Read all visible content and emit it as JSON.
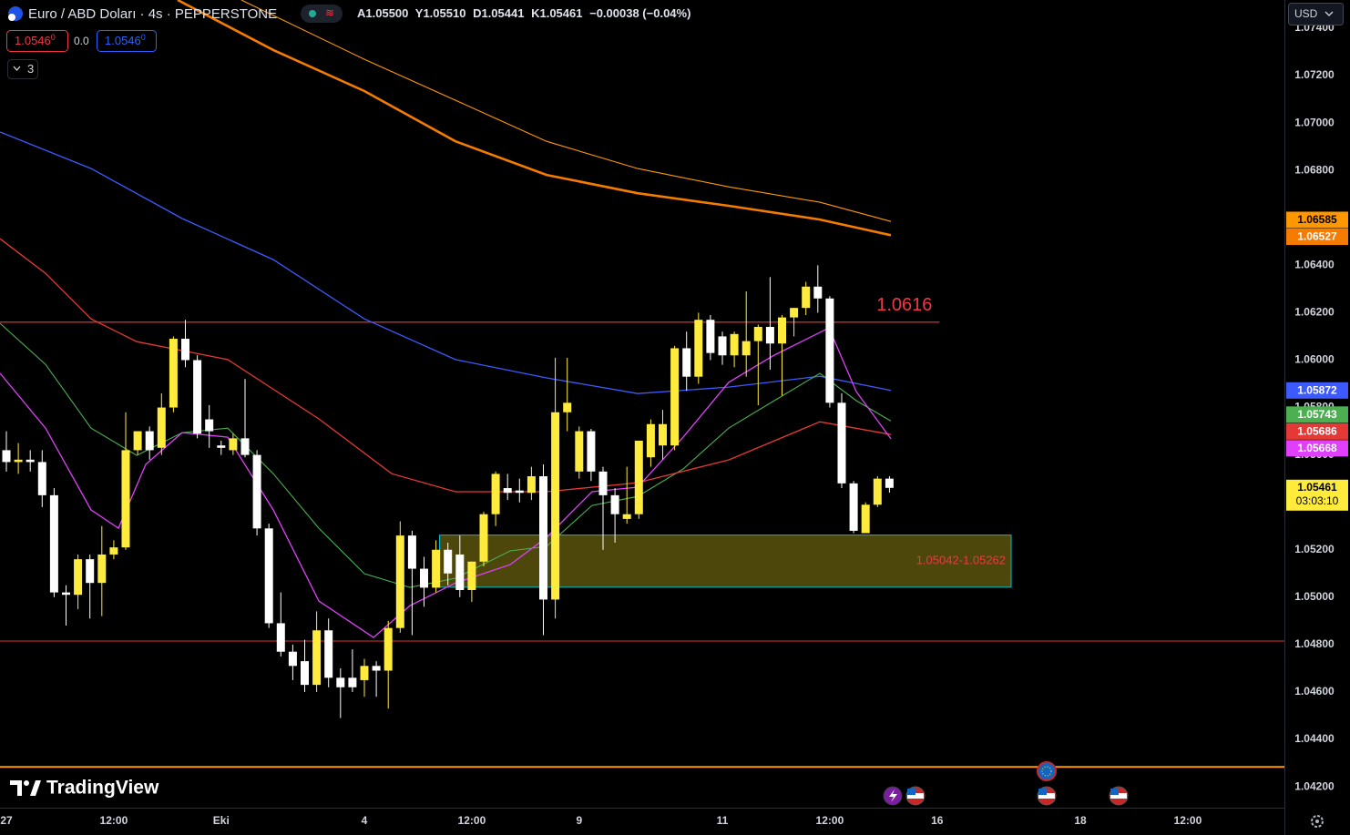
{
  "header": {
    "symbol": "Euro / ABD Doları · 4s · PEPPERSTONE",
    "ohlc": [
      "A1.05500",
      "Y1.05510",
      "D1.05441",
      "K1.05461",
      "−0.00038 (−0.04%)"
    ],
    "sell": "1.0546",
    "sell_sup": "0",
    "spread": "0.0",
    "buy": "1.0546",
    "buy_sup": "0",
    "indicators_count": "3",
    "currency": "USD",
    "brand": "TradingView"
  },
  "chart_data": {
    "type": "candlestick",
    "categories": [
      "27",
      null,
      null,
      null,
      null,
      null,
      null,
      null,
      null,
      "12:00",
      null,
      null,
      null,
      null,
      null,
      null,
      null,
      null,
      "Eki",
      null,
      null,
      null,
      null,
      null,
      null,
      null,
      null,
      null,
      null,
      null,
      "4",
      null,
      null,
      null,
      null,
      null,
      null,
      null,
      null,
      "12:00",
      null,
      null,
      null,
      null,
      null,
      null,
      null,
      null,
      "9",
      null,
      null,
      null,
      null,
      null,
      null,
      null,
      null,
      null,
      null,
      null,
      "11",
      null,
      null,
      null,
      null,
      null,
      null,
      null,
      null,
      "12:00",
      null,
      null,
      null,
      null,
      null,
      null,
      null,
      null,
      "16",
      null,
      null,
      null,
      null,
      null,
      null,
      null,
      null,
      null,
      null,
      null,
      "18",
      null,
      null,
      null,
      null,
      null,
      null,
      null,
      null,
      "12:00"
    ],
    "open": [
      1.0562,
      1.0557,
      1.0558,
      1.0557,
      1.0543,
      1.0502,
      1.0501,
      1.0516,
      1.0506,
      1.0518,
      1.0521,
      1.0562,
      1.057,
      1.0563,
      1.058,
      1.0609,
      1.06,
      1.0575,
      1.0564,
      1.0562,
      1.0567,
      1.056,
      1.0529,
      1.0489,
      1.0477,
      1.0473,
      1.0463,
      1.0486,
      1.0466,
      1.0466,
      1.0465,
      1.0471,
      1.0469,
      1.0487,
      1.0526,
      1.0512,
      1.0504,
      1.052,
      1.0518,
      1.0503,
      1.0515,
      1.0535,
      1.0546,
      1.0545,
      1.0544,
      1.0551,
      1.0499,
      1.0578,
      1.0553,
      1.057,
      1.0553,
      1.0543,
      1.0533,
      1.0535,
      1.0559,
      1.0564,
      1.0564,
      1.0605,
      1.0593,
      1.0617,
      1.061,
      1.0602,
      1.0602,
      1.0608,
      1.0614,
      1.0607,
      1.0618,
      1.0622,
      1.0631,
      1.0626,
      1.0582,
      1.0548,
      1.0527,
      1.0539,
      1.055,
      null,
      null,
      null,
      null,
      null,
      null,
      null,
      null,
      null,
      null,
      null,
      null,
      null,
      null,
      null,
      null,
      null,
      null,
      null,
      null,
      null,
      null,
      null,
      null,
      null
    ],
    "high": [
      1.057,
      1.0565,
      1.0562,
      1.0562,
      1.0546,
      1.0505,
      1.0518,
      1.0518,
      1.053,
      1.0524,
      1.0578,
      1.057,
      1.0572,
      1.0586,
      1.061,
      1.0617,
      1.0602,
      1.0581,
      1.0566,
      1.0569,
      1.0592,
      1.0562,
      1.0531,
      1.0502,
      1.048,
      1.0482,
      1.0494,
      1.0491,
      1.047,
      1.0478,
      1.0474,
      1.0473,
      1.049,
      1.0532,
      1.0528,
      1.0517,
      1.0524,
      1.0523,
      1.0526,
      1.0515,
      1.0536,
      1.0553,
      1.0552,
      1.055,
      1.0555,
      1.0556,
      1.0601,
      1.0601,
      1.0572,
      1.0571,
      1.0555,
      1.0546,
      1.0555,
      1.0566,
      1.0575,
      1.0579,
      1.0606,
      1.0612,
      1.062,
      1.0619,
      1.0612,
      1.0612,
      1.0629,
      1.0615,
      1.0635,
      1.0619,
      1.0622,
      1.0633,
      1.064,
      1.0627,
      1.0586,
      1.0549,
      1.054,
      1.0551,
      1.0551,
      null,
      null,
      null,
      null,
      null,
      null,
      null,
      null,
      null,
      null,
      null,
      null,
      null,
      null,
      null,
      null,
      null,
      null,
      null,
      null,
      null,
      null,
      null,
      null,
      null
    ],
    "low": [
      1.0553,
      1.0552,
      1.0553,
      1.0538,
      1.05,
      1.0488,
      1.0495,
      1.0491,
      1.0492,
      1.0516,
      1.052,
      1.056,
      1.0558,
      1.056,
      1.0578,
      1.0597,
      1.0567,
      1.0563,
      1.056,
      1.056,
      1.0559,
      1.0526,
      1.0487,
      1.0475,
      1.0465,
      1.046,
      1.046,
      1.0462,
      1.0449,
      1.046,
      1.0458,
      1.0458,
      1.0453,
      1.0485,
      1.0484,
      1.0496,
      1.0502,
      1.0505,
      1.05,
      1.0498,
      1.0513,
      1.053,
      1.0541,
      1.054,
      1.0541,
      1.0484,
      1.0491,
      1.057,
      1.055,
      1.0549,
      1.052,
      1.0523,
      1.0531,
      1.0533,
      1.0555,
      1.0558,
      1.0562,
      1.0587,
      1.059,
      1.06,
      1.0598,
      1.0597,
      1.0593,
      1.0581,
      1.0596,
      1.0585,
      1.061,
      1.0619,
      1.062,
      1.058,
      1.0546,
      1.0527,
      1.0527,
      1.0538,
      1.05441,
      null,
      null,
      null,
      null,
      null,
      null,
      null,
      null,
      null,
      null,
      null,
      null,
      null,
      null,
      null,
      null,
      null,
      null,
      null,
      null,
      null,
      null,
      null,
      null,
      null
    ],
    "close": [
      1.0557,
      1.0558,
      1.0557,
      1.0543,
      1.0502,
      1.0501,
      1.0516,
      1.0506,
      1.0518,
      1.0521,
      1.0562,
      1.057,
      1.0562,
      1.058,
      1.0609,
      1.06,
      1.0569,
      1.057,
      1.0563,
      1.0567,
      1.056,
      1.0529,
      1.0489,
      1.0477,
      1.0471,
      1.0463,
      1.0486,
      1.0466,
      1.0462,
      1.0462,
      1.0471,
      1.0469,
      1.0487,
      1.0526,
      1.0512,
      1.0504,
      1.052,
      1.051,
      1.0503,
      1.0515,
      1.0535,
      1.0552,
      1.0544,
      1.0544,
      1.0551,
      1.0499,
      1.0578,
      1.0582,
      1.057,
      1.0553,
      1.0543,
      1.0535,
      1.0535,
      1.0566,
      1.0573,
      1.0573,
      1.0605,
      1.0593,
      1.0617,
      1.0603,
      1.0602,
      1.0611,
      1.0608,
      1.0614,
      1.0607,
      1.0618,
      1.0622,
      1.0631,
      1.0626,
      1.0582,
      1.0548,
      1.0528,
      1.0539,
      1.055,
      1.05461,
      null,
      null,
      null,
      null,
      null,
      null,
      null,
      null,
      null,
      null,
      null,
      null,
      null,
      null,
      null,
      null,
      null,
      null,
      null,
      null,
      null,
      null,
      null,
      null,
      null
    ],
    "up_color": "#ffeb3b",
    "down_color": "#ffffff",
    "ylim": [
      1.04112,
      1.07519
    ],
    "yticks": [
      {
        "value": 1.042,
        "label": "1.04200"
      },
      {
        "value": 1.044,
        "label": "1.04400"
      },
      {
        "value": 1.046,
        "label": "1.04600"
      },
      {
        "value": 1.048,
        "label": "1.04800"
      },
      {
        "value": 1.05,
        "label": "1.05000"
      },
      {
        "value": 1.052,
        "label": "1.05200"
      },
      {
        "value": 1.054,
        "label": "1.05400"
      },
      {
        "value": 1.056,
        "label": "1.05600"
      },
      {
        "value": 1.058,
        "label": "1.05800"
      },
      {
        "value": 1.06,
        "label": "1.06000"
      },
      {
        "value": 1.062,
        "label": "1.06200"
      },
      {
        "value": 1.064,
        "label": "1.06400"
      },
      {
        "value": 1.066,
        "label": "1.06600"
      },
      {
        "value": 1.068,
        "label": "1.06800"
      },
      {
        "value": 1.07,
        "label": "1.07000"
      },
      {
        "value": 1.072,
        "label": "1.07200"
      },
      {
        "value": 1.074,
        "label": "1.07400"
      }
    ],
    "lines": [
      {
        "color": "#f57c00",
        "width": 2.6,
        "x": [
          14.35,
          22.37,
          30,
          37.63,
          45.27,
          52.9,
          60.53,
          68.17,
          74.12
        ],
        "values": [
          1.07519,
          1.07308,
          1.07135,
          1.06923,
          1.06781,
          1.06704,
          1.06651,
          1.06593,
          1.06527
        ],
        "value_label": "1.06527"
      },
      {
        "color": "#ff9800",
        "width": 1.1,
        "x": [
          19.69,
          30,
          37.63,
          45.27,
          52.9,
          60.53,
          68.17,
          74.12
        ],
        "values": [
          1.07519,
          1.07269,
          1.07096,
          1.06923,
          1.06808,
          1.06731,
          1.06666,
          1.06585
        ],
        "value_label": "1.06585"
      },
      {
        "color": "#3d5afe",
        "width": 1.3,
        "x": [
          -0.53,
          7.1,
          14.73,
          22.37,
          30,
          37.63,
          45.27,
          52.9,
          60.53,
          68.17,
          74.12
        ],
        "values": [
          1.06962,
          1.06808,
          1.06597,
          1.06424,
          1.06174,
          1.06002,
          1.05925,
          1.05859,
          1.05886,
          1.05932,
          1.05872
        ],
        "value_label": "1.05872"
      },
      {
        "color": "#4caf50",
        "width": 1.1,
        "x": [
          -0.53,
          3.28,
          7.1,
          10.92,
          14.73,
          18.55,
          22.37,
          26.18,
          30,
          33.82,
          37.63,
          42.21,
          45.27,
          49.08,
          52.9,
          56.72,
          60.53,
          64.35,
          68.17,
          71.22,
          74.12
        ],
        "values": [
          1.06155,
          1.05982,
          1.05713,
          1.05598,
          1.05694,
          1.05713,
          1.05521,
          1.05291,
          1.05099,
          1.05041,
          1.0508,
          1.05195,
          1.05214,
          1.05387,
          1.05425,
          1.05541,
          1.05713,
          1.05829,
          1.05944,
          1.05829,
          1.05743
        ],
        "value_label": "1.05743"
      },
      {
        "color": "#e53935",
        "width": 1.3,
        "x": [
          -0.53,
          3.28,
          7.1,
          10.92,
          18.55,
          26.18,
          32.29,
          37.63,
          45.27,
          52.9,
          60.53,
          68.17,
          74.12
        ],
        "values": [
          1.06512,
          1.06366,
          1.06174,
          1.06078,
          1.06002,
          1.05752,
          1.05521,
          1.05445,
          1.05445,
          1.05483,
          1.05579,
          1.0574,
          1.05686
        ],
        "value_label": "1.05686"
      },
      {
        "color": "#e040fb",
        "width": 1.3,
        "x": [
          -0.53,
          3.28,
          7.1,
          9.39,
          11.68,
          14.73,
          18.55,
          22.37,
          26.18,
          30.76,
          33.82,
          37.63,
          42.21,
          45.27,
          49.08,
          52.9,
          56.72,
          60.53,
          64.35,
          68.93,
          71.22,
          74.12
        ],
        "values": [
          1.05944,
          1.05713,
          1.05368,
          1.05291,
          1.0556,
          1.05694,
          1.05675,
          1.05368,
          1.04984,
          1.0483,
          1.04964,
          1.0506,
          1.05137,
          1.05252,
          1.05445,
          1.05464,
          1.05675,
          1.05906,
          1.06021,
          1.06136,
          1.05867,
          1.05668
        ],
        "value_label": "1.05668"
      }
    ],
    "levels": [
      {
        "value": 1.0616,
        "label": "1.0616",
        "color": "#f23645",
        "x": [
          -0.6,
          78.2
        ]
      },
      {
        "value": 1.04815,
        "color": "#b2282e"
      },
      {
        "value": 1.04284,
        "color": "#ff9800"
      }
    ],
    "zone": {
      "low": 1.05042,
      "high": 1.05262,
      "label": "1.05042-1.05262",
      "x": [
        36.3,
        84.2
      ]
    },
    "last_price": {
      "value": 1.05461,
      "label": "1.05461",
      "countdown": "03:03:10",
      "color": "#ffeb3b"
    }
  }
}
